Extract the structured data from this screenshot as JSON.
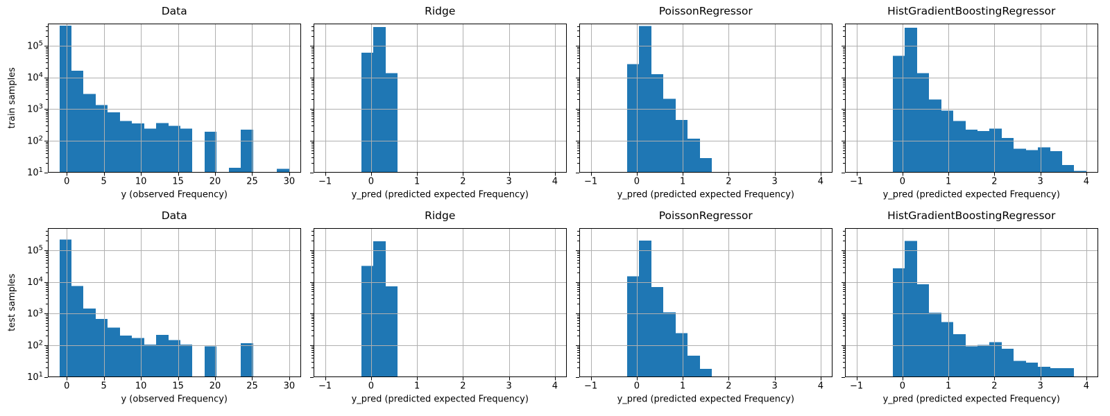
{
  "figure": {
    "background": "#ffffff",
    "bar_color": "#1f77b4",
    "grid_color": "#b0b0b0",
    "spine_color": "#000000",
    "text_color": "#000000"
  },
  "chart_data": [
    {
      "id": "train-data",
      "type": "bar",
      "row": 0,
      "col": 0,
      "title": "Data",
      "xlabel": "y (observed Frequency)",
      "ylabel": "train samples",
      "yscale": "log",
      "ylim": [
        10,
        500000
      ],
      "xlim": [
        -2.55,
        31.55
      ],
      "xticks": [
        0,
        5,
        10,
        15,
        20,
        25,
        30
      ],
      "ytick_exponents": [
        1,
        2,
        3,
        4,
        5
      ],
      "show_ytick_labels": true,
      "grid": true,
      "bin_range": [
        -1,
        30
      ],
      "n_bins": 19,
      "counts": [
        435000,
        16000,
        3000,
        1350,
        780,
        420,
        350,
        240,
        360,
        290,
        240,
        0,
        190,
        0,
        14,
        220,
        0,
        0,
        13
      ]
    },
    {
      "id": "train-ridge",
      "type": "bar",
      "row": 0,
      "col": 1,
      "title": "Ridge",
      "xlabel": "y_pred (predicted expected Frequency)",
      "ylabel": "",
      "yscale": "log",
      "ylim": [
        10,
        500000
      ],
      "xlim": [
        -1.25,
        4.25
      ],
      "xticks": [
        -1,
        0,
        1,
        2,
        3,
        4
      ],
      "ytick_exponents": [
        1,
        2,
        3,
        4,
        5
      ],
      "show_ytick_labels": false,
      "grid": true,
      "bin_range": [
        -1,
        4
      ],
      "n_bins": 19,
      "counts": [
        0,
        0,
        0,
        60000,
        390000,
        13500,
        0,
        0,
        0,
        0,
        0,
        0,
        0,
        0,
        0,
        0,
        0,
        0,
        0
      ]
    },
    {
      "id": "train-poissonregressor",
      "type": "bar",
      "row": 0,
      "col": 2,
      "title": "PoissonRegressor",
      "xlabel": "y_pred (predicted expected Frequency)",
      "ylabel": "",
      "yscale": "log",
      "ylim": [
        10,
        500000
      ],
      "xlim": [
        -1.25,
        4.25
      ],
      "xticks": [
        -1,
        0,
        1,
        2,
        3,
        4
      ],
      "ytick_exponents": [
        1,
        2,
        3,
        4,
        5
      ],
      "show_ytick_labels": false,
      "grid": true,
      "bin_range": [
        -1,
        4
      ],
      "n_bins": 19,
      "counts": [
        0,
        0,
        0,
        26000,
        420000,
        12500,
        2100,
        450,
        115,
        28,
        0,
        0,
        0,
        0,
        0,
        0,
        0,
        0,
        0
      ]
    },
    {
      "id": "train-histgradientboostingregressor",
      "type": "bar",
      "row": 0,
      "col": 3,
      "title": "HistGradientBoostingRegressor",
      "xlabel": "y_pred (predicted expected Frequency)",
      "ylabel": "",
      "yscale": "log",
      "ylim": [
        10,
        500000
      ],
      "xlim": [
        -1.25,
        4.25
      ],
      "xticks": [
        -1,
        0,
        1,
        2,
        3,
        4
      ],
      "ytick_exponents": [
        1,
        2,
        3,
        4,
        5
      ],
      "show_ytick_labels": false,
      "grid": true,
      "bin_range": [
        -1,
        4
      ],
      "n_bins": 19,
      "counts": [
        0,
        0,
        0,
        48000,
        370000,
        13500,
        2000,
        880,
        420,
        220,
        200,
        240,
        120,
        56,
        50,
        61,
        46,
        17,
        11
      ]
    },
    {
      "id": "test-data",
      "type": "bar",
      "row": 1,
      "col": 0,
      "title": "Data",
      "xlabel": "y (observed Frequency)",
      "ylabel": "test samples",
      "yscale": "log",
      "ylim": [
        10,
        500000
      ],
      "xlim": [
        -2.55,
        31.55
      ],
      "xticks": [
        0,
        5,
        10,
        15,
        20,
        25,
        30
      ],
      "ytick_exponents": [
        1,
        2,
        3,
        4,
        5
      ],
      "show_ytick_labels": true,
      "grid": true,
      "bin_range": [
        -1,
        30
      ],
      "n_bins": 19,
      "counts": [
        220000,
        7500,
        1450,
        680,
        360,
        200,
        170,
        105,
        210,
        145,
        105,
        0,
        93,
        0,
        0,
        115,
        0,
        0,
        0
      ]
    },
    {
      "id": "test-ridge",
      "type": "bar",
      "row": 1,
      "col": 1,
      "title": "Ridge",
      "xlabel": "y_pred (predicted expected Frequency)",
      "ylabel": "",
      "yscale": "log",
      "ylim": [
        10,
        500000
      ],
      "xlim": [
        -1.25,
        4.25
      ],
      "xticks": [
        -1,
        0,
        1,
        2,
        3,
        4
      ],
      "ytick_exponents": [
        1,
        2,
        3,
        4,
        5
      ],
      "show_ytick_labels": false,
      "grid": true,
      "bin_range": [
        -1,
        4
      ],
      "n_bins": 19,
      "counts": [
        0,
        0,
        0,
        32000,
        190000,
        7300,
        0,
        0,
        0,
        0,
        0,
        0,
        0,
        0,
        0,
        0,
        0,
        0,
        0
      ]
    },
    {
      "id": "test-poissonregressor",
      "type": "bar",
      "row": 1,
      "col": 2,
      "title": "PoissonRegressor",
      "xlabel": "y_pred (predicted expected Frequency)",
      "ylabel": "",
      "yscale": "log",
      "ylim": [
        10,
        500000
      ],
      "xlim": [
        -1.25,
        4.25
      ],
      "xticks": [
        -1,
        0,
        1,
        2,
        3,
        4
      ],
      "ytick_exponents": [
        1,
        2,
        3,
        4,
        5
      ],
      "show_ytick_labels": false,
      "grid": true,
      "bin_range": [
        -1,
        4
      ],
      "n_bins": 19,
      "counts": [
        0,
        0,
        0,
        15000,
        200000,
        6800,
        1100,
        240,
        47,
        18,
        0,
        0,
        0,
        0,
        0,
        0,
        0,
        0,
        0
      ]
    },
    {
      "id": "test-histgradientboostingregressor",
      "type": "bar",
      "row": 1,
      "col": 3,
      "title": "HistGradientBoostingRegressor",
      "xlabel": "y_pred (predicted expected Frequency)",
      "ylabel": "",
      "yscale": "log",
      "ylim": [
        10,
        500000
      ],
      "xlim": [
        -1.25,
        4.25
      ],
      "xticks": [
        -1,
        0,
        1,
        2,
        3,
        4
      ],
      "ytick_exponents": [
        1,
        2,
        3,
        4,
        5
      ],
      "show_ytick_labels": false,
      "grid": true,
      "bin_range": [
        -1,
        4
      ],
      "n_bins": 19,
      "counts": [
        0,
        0,
        0,
        27000,
        195000,
        8500,
        1050,
        540,
        220,
        92,
        103,
        126,
        78,
        32,
        28,
        21,
        19,
        19,
        0
      ]
    }
  ]
}
